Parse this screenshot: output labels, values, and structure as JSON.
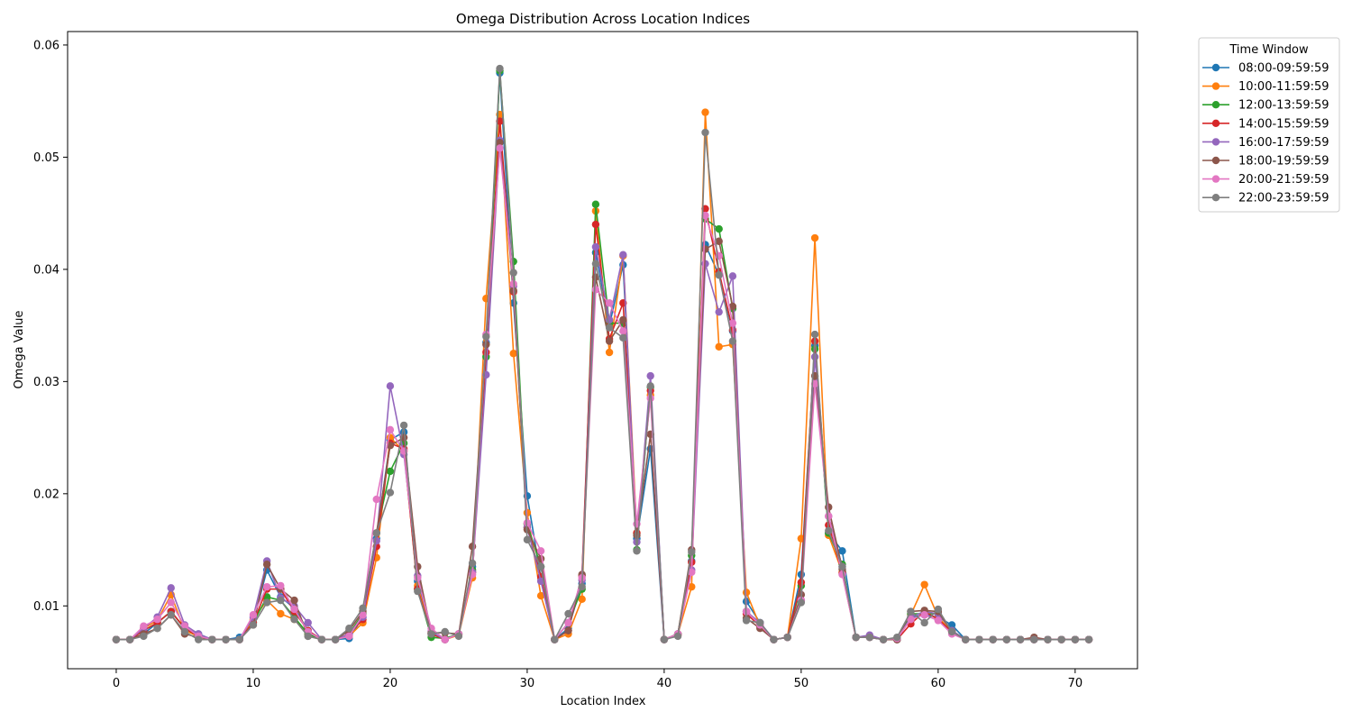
{
  "chart_data": {
    "type": "line",
    "title": "Omega Distribution Across Location Indices",
    "xlabel": "Location Index",
    "ylabel": "Omega Value",
    "xlim": [
      -3.55,
      74.55
    ],
    "ylim": [
      0.0044,
      0.0612
    ],
    "xticks": [
      0,
      10,
      20,
      30,
      40,
      50,
      60,
      70
    ],
    "yticks": [
      0.01,
      0.02,
      0.03,
      0.04,
      0.05,
      0.06
    ],
    "ytick_labels": [
      "0.01",
      "0.02",
      "0.03",
      "0.04",
      "0.05",
      "0.06"
    ],
    "grid": false,
    "legend": {
      "title": "Time Window",
      "placement": "outside-top-right"
    },
    "series": [
      {
        "name": "08:00-09:59:59",
        "color": "#1f77b4",
        "values": [
          0.007,
          0.007,
          0.0075,
          0.0085,
          0.0095,
          0.008,
          0.0075,
          0.007,
          0.007,
          0.0072,
          0.0085,
          0.0132,
          0.0108,
          0.0098,
          0.0078,
          0.007,
          0.007,
          0.0071,
          0.009,
          0.016,
          0.0248,
          0.0255,
          0.0122,
          0.0075,
          0.007,
          0.0075,
          0.0135,
          0.0335,
          0.0575,
          0.037,
          0.0198,
          0.0125,
          0.007,
          0.008,
          0.012,
          0.0415,
          0.035,
          0.0404,
          0.016,
          0.024,
          0.007,
          0.0075,
          0.014,
          0.0422,
          0.0395,
          0.0345,
          0.0104,
          0.0085,
          0.007,
          0.0072,
          0.0128,
          0.0332,
          0.0165,
          0.0149,
          0.0072,
          0.0072,
          0.007,
          0.007,
          0.009,
          0.0092,
          0.009,
          0.0083,
          0.007,
          0.007,
          0.007,
          0.007,
          0.007,
          0.007,
          0.007,
          0.007,
          0.007,
          0.007
        ]
      },
      {
        "name": "10:00-11:59:59",
        "color": "#ff7f0e",
        "values": [
          0.007,
          0.007,
          0.008,
          0.0087,
          0.011,
          0.0078,
          0.0073,
          0.007,
          0.007,
          0.007,
          0.0088,
          0.0105,
          0.0093,
          0.0088,
          0.0075,
          0.007,
          0.007,
          0.0073,
          0.0085,
          0.0143,
          0.025,
          0.0238,
          0.0118,
          0.0076,
          0.007,
          0.0074,
          0.0125,
          0.0374,
          0.0538,
          0.0325,
          0.0183,
          0.0109,
          0.007,
          0.0075,
          0.0106,
          0.0452,
          0.0326,
          0.0412,
          0.0165,
          0.0288,
          0.007,
          0.0075,
          0.0117,
          0.054,
          0.0331,
          0.0333,
          0.0112,
          0.0082,
          0.007,
          0.0072,
          0.016,
          0.0428,
          0.0163,
          0.013,
          0.0072,
          0.0073,
          0.007,
          0.007,
          0.0092,
          0.0119,
          0.009,
          0.0077,
          0.007,
          0.007,
          0.007,
          0.007,
          0.007,
          0.007,
          0.007,
          0.007,
          0.007,
          0.007
        ]
      },
      {
        "name": "12:00-13:59:59",
        "color": "#2ca02c",
        "values": [
          0.007,
          0.007,
          0.0078,
          0.0085,
          0.0095,
          0.008,
          0.0073,
          0.007,
          0.007,
          0.007,
          0.0085,
          0.0108,
          0.0105,
          0.009,
          0.0075,
          0.007,
          0.007,
          0.0075,
          0.0093,
          0.0165,
          0.022,
          0.0245,
          0.0115,
          0.0072,
          0.0071,
          0.0075,
          0.0132,
          0.0322,
          0.0577,
          0.0407,
          0.0173,
          0.0135,
          0.007,
          0.0085,
          0.0115,
          0.0458,
          0.0352,
          0.0352,
          0.015,
          0.0295,
          0.007,
          0.0075,
          0.0145,
          0.0445,
          0.0436,
          0.0365,
          0.0095,
          0.0082,
          0.007,
          0.0072,
          0.0118,
          0.0329,
          0.0165,
          0.0137,
          0.0072,
          0.0072,
          0.007,
          0.007,
          0.0093,
          0.0093,
          0.0093,
          0.0078,
          0.007,
          0.007,
          0.007,
          0.007,
          0.007,
          0.007,
          0.007,
          0.007,
          0.007,
          0.007
        ]
      },
      {
        "name": "14:00-15:59:59",
        "color": "#d62728",
        "values": [
          0.007,
          0.007,
          0.0078,
          0.0085,
          0.0095,
          0.008,
          0.0073,
          0.007,
          0.007,
          0.007,
          0.0085,
          0.0115,
          0.0115,
          0.0095,
          0.0078,
          0.007,
          0.007,
          0.0075,
          0.0088,
          0.0153,
          0.0245,
          0.024,
          0.0115,
          0.0075,
          0.007,
          0.0075,
          0.013,
          0.0326,
          0.0532,
          0.038,
          0.017,
          0.0126,
          0.007,
          0.0078,
          0.0127,
          0.044,
          0.0338,
          0.037,
          0.0165,
          0.0292,
          0.007,
          0.0074,
          0.0139,
          0.0454,
          0.0398,
          0.0346,
          0.0093,
          0.0082,
          0.007,
          0.0072,
          0.0121,
          0.0336,
          0.0172,
          0.0129,
          0.0072,
          0.0072,
          0.007,
          0.007,
          0.0084,
          0.0095,
          0.0088,
          0.0077,
          0.007,
          0.007,
          0.007,
          0.007,
          0.007,
          0.007,
          0.007,
          0.007,
          0.007,
          0.007
        ]
      },
      {
        "name": "16:00-17:59:59",
        "color": "#9467bd",
        "values": [
          0.007,
          0.007,
          0.008,
          0.009,
          0.0116,
          0.0083,
          0.0075,
          0.007,
          0.007,
          0.007,
          0.009,
          0.014,
          0.0107,
          0.01,
          0.0085,
          0.007,
          0.007,
          0.0075,
          0.009,
          0.0158,
          0.0296,
          0.0235,
          0.0127,
          0.0077,
          0.007,
          0.0075,
          0.013,
          0.0306,
          0.0515,
          0.0385,
          0.017,
          0.0122,
          0.007,
          0.0085,
          0.0123,
          0.042,
          0.0355,
          0.0413,
          0.0157,
          0.0305,
          0.007,
          0.0075,
          0.0132,
          0.0405,
          0.0362,
          0.0394,
          0.0095,
          0.0085,
          0.007,
          0.0072,
          0.0105,
          0.0322,
          0.018,
          0.0135,
          0.0072,
          0.0074,
          0.007,
          0.007,
          0.009,
          0.0095,
          0.0093,
          0.0078,
          0.007,
          0.007,
          0.007,
          0.007,
          0.007,
          0.007,
          0.007,
          0.007,
          0.007,
          0.007
        ]
      },
      {
        "name": "18:00-19:59:59",
        "color": "#8c564b",
        "values": [
          0.007,
          0.007,
          0.0075,
          0.008,
          0.0092,
          0.0075,
          0.0072,
          0.007,
          0.007,
          0.007,
          0.0083,
          0.0137,
          0.0115,
          0.0105,
          0.0073,
          0.007,
          0.007,
          0.0078,
          0.0095,
          0.0165,
          0.0243,
          0.025,
          0.0135,
          0.0076,
          0.0076,
          0.0075,
          0.0153,
          0.0333,
          0.0513,
          0.0381,
          0.0168,
          0.0142,
          0.007,
          0.0078,
          0.0128,
          0.0393,
          0.0336,
          0.0355,
          0.0163,
          0.0253,
          0.007,
          0.0075,
          0.015,
          0.0418,
          0.0425,
          0.0367,
          0.0089,
          0.008,
          0.007,
          0.0072,
          0.011,
          0.0305,
          0.0188,
          0.0133,
          0.0072,
          0.0072,
          0.007,
          0.007,
          0.0095,
          0.0096,
          0.0095,
          0.0077,
          0.007,
          0.007,
          0.007,
          0.007,
          0.007,
          0.0072,
          0.007,
          0.007,
          0.007,
          0.007
        ]
      },
      {
        "name": "20:00-21:59:59",
        "color": "#e377c2",
        "values": [
          0.007,
          0.007,
          0.0082,
          0.0088,
          0.0103,
          0.0082,
          0.0073,
          0.007,
          0.007,
          0.007,
          0.0092,
          0.0117,
          0.0118,
          0.0097,
          0.0077,
          0.007,
          0.007,
          0.0073,
          0.0092,
          0.0195,
          0.0257,
          0.0238,
          0.0125,
          0.008,
          0.007,
          0.0075,
          0.0128,
          0.0342,
          0.0508,
          0.0387,
          0.0174,
          0.0149,
          0.007,
          0.0085,
          0.0125,
          0.0382,
          0.037,
          0.0345,
          0.0173,
          0.0285,
          0.007,
          0.0075,
          0.013,
          0.0448,
          0.0412,
          0.0352,
          0.0095,
          0.0083,
          0.007,
          0.0072,
          0.0105,
          0.0298,
          0.018,
          0.0128,
          0.0072,
          0.0072,
          0.007,
          0.0071,
          0.0088,
          0.0092,
          0.0087,
          0.0075,
          0.007,
          0.007,
          0.007,
          0.007,
          0.007,
          0.007,
          0.007,
          0.007,
          0.007,
          0.007
        ]
      },
      {
        "name": "22:00-23:59:59",
        "color": "#7f7f7f",
        "values": [
          0.007,
          0.007,
          0.0073,
          0.008,
          0.0092,
          0.0077,
          0.007,
          0.007,
          0.007,
          0.007,
          0.0083,
          0.0103,
          0.0105,
          0.0088,
          0.0073,
          0.007,
          0.007,
          0.008,
          0.0098,
          0.0165,
          0.0201,
          0.0261,
          0.0113,
          0.0075,
          0.0077,
          0.0073,
          0.0138,
          0.034,
          0.0579,
          0.0397,
          0.0159,
          0.0135,
          0.007,
          0.0093,
          0.0117,
          0.0405,
          0.0348,
          0.0339,
          0.0149,
          0.0296,
          0.007,
          0.0073,
          0.0148,
          0.0522,
          0.0395,
          0.0336,
          0.0087,
          0.0085,
          0.007,
          0.0072,
          0.0103,
          0.0342,
          0.0167,
          0.0135,
          0.0072,
          0.0072,
          0.007,
          0.0072,
          0.0095,
          0.0085,
          0.0097,
          0.0077,
          0.007,
          0.007,
          0.007,
          0.007,
          0.007,
          0.007,
          0.007,
          0.007,
          0.007,
          0.007
        ]
      }
    ]
  }
}
